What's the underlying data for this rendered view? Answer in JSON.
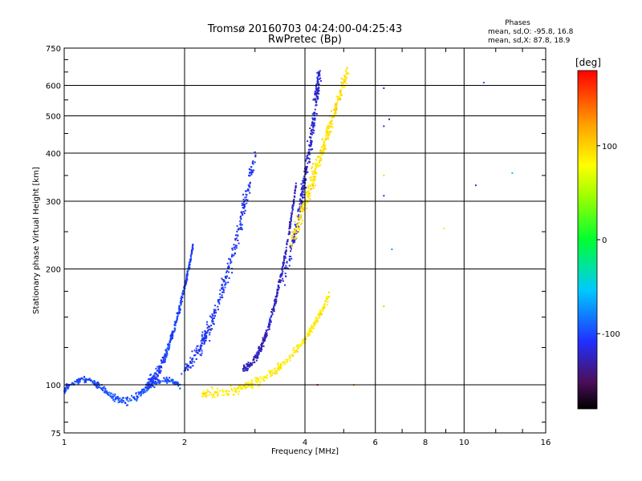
{
  "chart_data": {
    "type": "scatter",
    "title": "Tromsø 20160703 04:24:00-04:25:43",
    "subtitle": "RwPretec (Bp)",
    "xlabel": "Frequency [MHz]",
    "ylabel": "Stationary phase Virtual Height [km]",
    "x_scale": "log",
    "y_scale": "log",
    "xlim": [
      1,
      16
    ],
    "ylim": [
      75,
      750
    ],
    "x_ticks": [
      1,
      2,
      4,
      6,
      8,
      10,
      16
    ],
    "x_tick_labels": [
      "1",
      "2",
      "4",
      "6",
      "8",
      "10",
      "16"
    ],
    "y_ticks": [
      75,
      100,
      200,
      300,
      400,
      500,
      600,
      750
    ],
    "y_tick_labels": [
      "75",
      "100",
      "200",
      "300",
      "400",
      "500",
      "600",
      "750"
    ],
    "grid": true,
    "stats": {
      "heading": "Phases",
      "line_o": "mean, sd,O: -95.8, 16.8",
      "line_x": "mean, sd,X:  87.8, 18.9"
    },
    "colorbar": {
      "label": "[deg]",
      "range": [
        -180,
        180
      ],
      "ticks": [
        100,
        0,
        -100
      ],
      "tick_labels": [
        "100",
        "0",
        "-100"
      ]
    },
    "series": [
      {
        "description_key": "o_low_layer",
        "phase": -100,
        "x_range": [
          1.0,
          1.95
        ],
        "y_range": [
          93,
          108
        ]
      },
      {
        "description_key": "o_e_trace",
        "phase": -105,
        "x_range": [
          1.6,
          2.1
        ],
        "y_range": [
          100,
          230
        ]
      },
      {
        "description_key": "o_f1_trace",
        "phase": -110,
        "x_range": [
          2.0,
          3.0
        ],
        "y_range": [
          110,
          400
        ]
      },
      {
        "description_key": "o_f2_trace",
        "phase": -125,
        "x_range": [
          2.8,
          3.8
        ],
        "y_range": [
          110,
          330
        ]
      },
      {
        "description_key": "o_f2_cusp",
        "phase": -120,
        "x_range": [
          3.4,
          4.4
        ],
        "y_range": [
          180,
          650
        ]
      },
      {
        "description_key": "x_f2_trace",
        "phase": 95,
        "x_range": [
          3.7,
          5.1
        ],
        "y_range": [
          230,
          650
        ]
      },
      {
        "description_key": "x_low_trace",
        "phase": 90,
        "x_range": [
          2.2,
          4.6
        ],
        "y_range": [
          95,
          170
        ]
      }
    ]
  }
}
